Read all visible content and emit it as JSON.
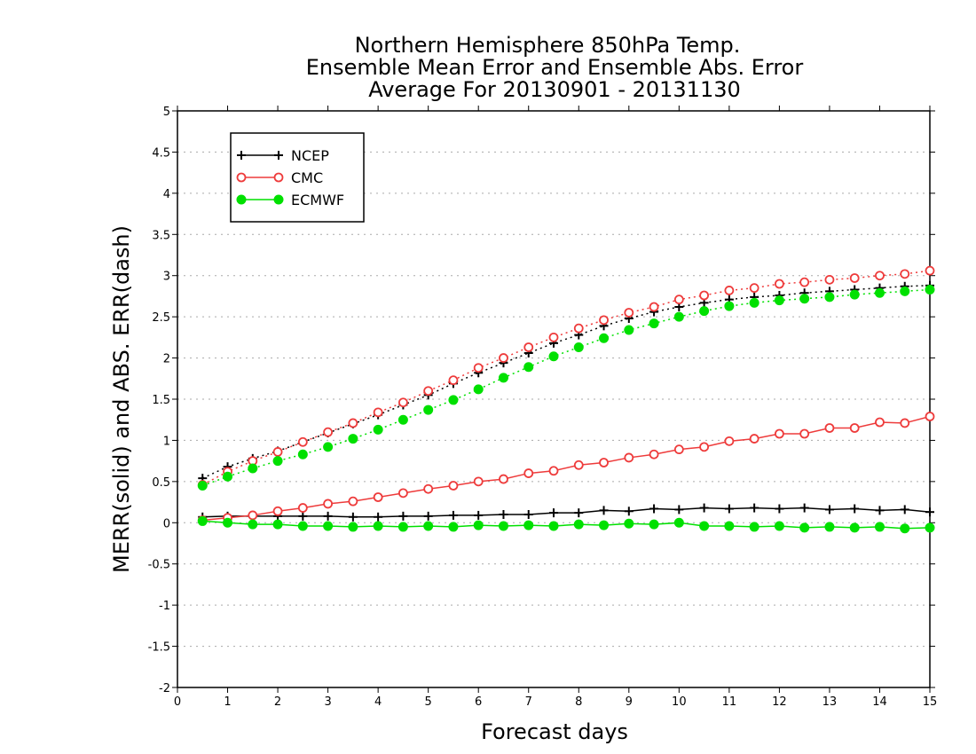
{
  "chart_data": {
    "type": "line",
    "title_lines": [
      "Northern Hemisphere 850hPa Temp.",
      "Ensemble Mean Error and Ensemble Abs. Error",
      "Average For 20130901 - 20131130"
    ],
    "xlabel": "Forecast days",
    "ylabel": "MERR(solid) and ABS. ERR(dash)",
    "xlim": [
      0,
      15
    ],
    "ylim": [
      -2,
      5
    ],
    "x_ticks": [
      "0",
      "1",
      "2",
      "3",
      "4",
      "5",
      "6",
      "7",
      "8",
      "9",
      "10",
      "11",
      "12",
      "13",
      "14",
      "15"
    ],
    "y_ticks": [
      "-2",
      "-1.5",
      "-1",
      "-0.5",
      "0",
      "0.5",
      "1",
      "1.5",
      "2",
      "2.5",
      "3",
      "3.5",
      "4",
      "4.5",
      "5"
    ],
    "grid": "horizontal dotted",
    "legend_position": "top-left",
    "x": [
      0.5,
      1,
      1.5,
      2,
      2.5,
      3,
      3.5,
      4,
      4.5,
      5,
      5.5,
      6,
      6.5,
      7,
      7.5,
      8,
      8.5,
      9,
      9.5,
      10,
      10.5,
      11,
      11.5,
      12,
      12.5,
      13,
      13.5,
      14,
      14.5,
      15
    ],
    "series": [
      {
        "name": "NCEP",
        "color": "#000000",
        "marker": "plus",
        "merr": [
          0.07,
          0.08,
          0.08,
          0.08,
          0.08,
          0.08,
          0.07,
          0.07,
          0.08,
          0.08,
          0.09,
          0.09,
          0.1,
          0.1,
          0.12,
          0.12,
          0.15,
          0.14,
          0.17,
          0.16,
          0.18,
          0.17,
          0.18,
          0.17,
          0.18,
          0.16,
          0.17,
          0.15,
          0.16,
          0.13
        ],
        "abs_err": [
          0.54,
          0.68,
          0.78,
          0.87,
          0.98,
          1.09,
          1.2,
          1.31,
          1.43,
          1.55,
          1.69,
          1.82,
          1.94,
          2.06,
          2.18,
          2.28,
          2.39,
          2.48,
          2.56,
          2.62,
          2.67,
          2.71,
          2.74,
          2.76,
          2.79,
          2.81,
          2.83,
          2.85,
          2.87,
          2.88
        ]
      },
      {
        "name": "CMC",
        "color": "#ee3b3b",
        "marker": "open-circle",
        "merr": [
          0.03,
          0.06,
          0.09,
          0.14,
          0.18,
          0.23,
          0.26,
          0.31,
          0.36,
          0.41,
          0.45,
          0.5,
          0.53,
          0.6,
          0.63,
          0.7,
          0.73,
          0.79,
          0.83,
          0.89,
          0.92,
          0.99,
          1.02,
          1.08,
          1.08,
          1.15,
          1.15,
          1.22,
          1.21,
          1.29
        ],
        "abs_err": [
          0.46,
          0.62,
          0.75,
          0.86,
          0.98,
          1.1,
          1.21,
          1.34,
          1.46,
          1.6,
          1.73,
          1.88,
          2.0,
          2.13,
          2.25,
          2.36,
          2.46,
          2.55,
          2.62,
          2.71,
          2.76,
          2.82,
          2.85,
          2.9,
          2.92,
          2.95,
          2.97,
          3.0,
          3.02,
          3.06
        ]
      },
      {
        "name": "ECMWF",
        "color": "#00e000",
        "marker": "filled-circle",
        "merr": [
          0.02,
          0.0,
          -0.02,
          -0.02,
          -0.04,
          -0.04,
          -0.05,
          -0.04,
          -0.05,
          -0.04,
          -0.05,
          -0.03,
          -0.04,
          -0.03,
          -0.04,
          -0.02,
          -0.03,
          -0.01,
          -0.02,
          0.0,
          -0.04,
          -0.04,
          -0.05,
          -0.04,
          -0.06,
          -0.05,
          -0.06,
          -0.05,
          -0.07,
          -0.06
        ],
        "abs_err": [
          0.45,
          0.56,
          0.66,
          0.75,
          0.83,
          0.92,
          1.02,
          1.13,
          1.25,
          1.37,
          1.49,
          1.62,
          1.76,
          1.89,
          2.02,
          2.13,
          2.24,
          2.34,
          2.42,
          2.5,
          2.57,
          2.63,
          2.67,
          2.7,
          2.72,
          2.74,
          2.77,
          2.79,
          2.81,
          2.83
        ]
      }
    ]
  }
}
